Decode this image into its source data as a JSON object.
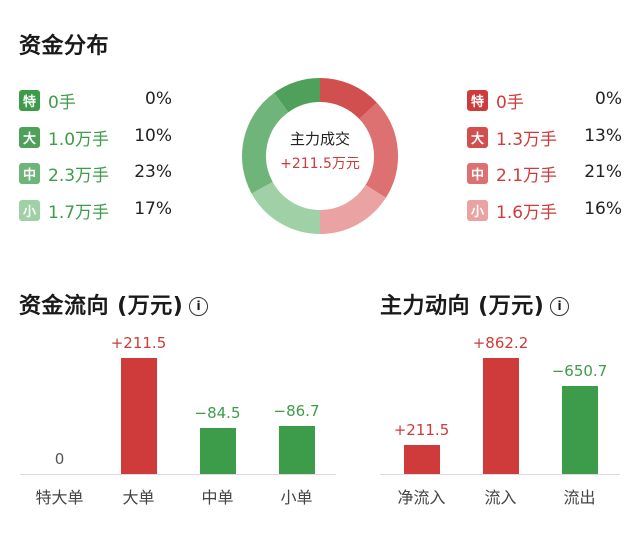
{
  "distribution": {
    "title": "资金分布",
    "inflow": [
      {
        "badge": "特",
        "volume": "0手",
        "percent": "0%",
        "color": "#3d9c4a"
      },
      {
        "badge": "大",
        "volume": "1.0万手",
        "percent": "10%",
        "color": "#4ea05a"
      },
      {
        "badge": "中",
        "volume": "2.3万手",
        "percent": "23%",
        "color": "#6fb57a"
      },
      {
        "badge": "小",
        "volume": "1.7万手",
        "percent": "17%",
        "color": "#9fd0a6"
      }
    ],
    "outflow": [
      {
        "badge": "特",
        "volume": "0手",
        "percent": "0%",
        "color": "#cf3a3a"
      },
      {
        "badge": "大",
        "volume": "1.3万手",
        "percent": "13%",
        "color": "#d24f4f"
      },
      {
        "badge": "中",
        "volume": "2.1万手",
        "percent": "21%",
        "color": "#dd7070"
      },
      {
        "badge": "小",
        "volume": "1.6万手",
        "percent": "16%",
        "color": "#eaa2a2"
      }
    ],
    "center_label": "主力成交",
    "center_value": "+211.5万元"
  },
  "flow": {
    "title": "资金流向 (万元)",
    "info_icon": "i",
    "chart_data": {
      "type": "bar",
      "categories": [
        "特大单",
        "大单",
        "中单",
        "小单"
      ],
      "values": [
        0,
        211.5,
        -84.5,
        -86.7
      ],
      "labels": [
        "0",
        "+211.5",
        "−84.5",
        "−86.7"
      ],
      "colors": {
        "positive": "#cf3a3a",
        "negative": "#3d9c4a"
      }
    }
  },
  "main": {
    "title": "主力动向 (万元)",
    "info_icon": "i",
    "chart_data": {
      "type": "bar",
      "categories": [
        "净流入",
        "流入",
        "流出"
      ],
      "values": [
        211.5,
        862.2,
        -650.7
      ],
      "labels": [
        "+211.5",
        "+862.2",
        "−650.7"
      ],
      "colors": {
        "positive": "#cf3a3a",
        "negative": "#3d9c4a"
      }
    }
  }
}
